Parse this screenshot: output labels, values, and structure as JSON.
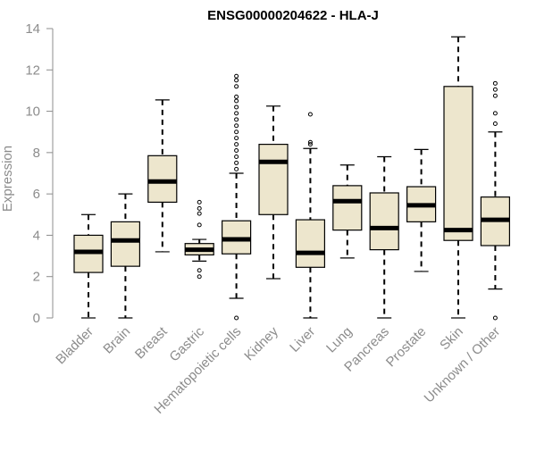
{
  "chart_data": {
    "type": "boxplot",
    "title": "ENSG00000204622 - HLA-J",
    "xlabel": "",
    "ylabel": "Expression",
    "ylim": [
      0,
      14
    ],
    "yticks": [
      0,
      2,
      4,
      6,
      8,
      10,
      12,
      14
    ],
    "grid": false,
    "box_fill": "#ede6cd",
    "series": [
      {
        "name": "Bladder",
        "lower_whisker": 0.0,
        "q1": 2.2,
        "median": 3.2,
        "q3": 4.0,
        "upper_whisker": 5.0,
        "outliers": []
      },
      {
        "name": "Brain",
        "lower_whisker": 0.0,
        "q1": 2.5,
        "median": 3.75,
        "q3": 4.65,
        "upper_whisker": 6.0,
        "outliers": []
      },
      {
        "name": "Breast",
        "lower_whisker": 3.2,
        "q1": 5.6,
        "median": 6.6,
        "q3": 7.85,
        "upper_whisker": 10.55,
        "outliers": []
      },
      {
        "name": "Gastric",
        "lower_whisker": 2.75,
        "q1": 3.05,
        "median": 3.3,
        "q3": 3.6,
        "upper_whisker": 3.8,
        "outliers": [
          5.6,
          5.3,
          5.05,
          4.5,
          2.3,
          2.0
        ]
      },
      {
        "name": "Hematopoietic cells",
        "lower_whisker": 0.95,
        "q1": 3.1,
        "median": 3.8,
        "q3": 4.7,
        "upper_whisker": 7.0,
        "outliers": [
          0.0,
          7.2,
          7.5,
          7.8,
          8.1,
          8.4,
          8.7,
          9.0,
          9.3,
          9.6,
          9.9,
          10.2,
          10.5,
          10.7,
          11.2,
          11.5,
          11.7
        ]
      },
      {
        "name": "Kidney",
        "lower_whisker": 1.9,
        "q1": 5.0,
        "median": 7.55,
        "q3": 8.4,
        "upper_whisker": 10.25,
        "outliers": []
      },
      {
        "name": "Liver",
        "lower_whisker": 0.0,
        "q1": 2.45,
        "median": 3.15,
        "q3": 4.75,
        "upper_whisker": 8.2,
        "outliers": [
          8.4,
          8.5,
          9.85
        ]
      },
      {
        "name": "Lung",
        "lower_whisker": 2.9,
        "q1": 4.25,
        "median": 5.65,
        "q3": 6.4,
        "upper_whisker": 7.4,
        "outliers": []
      },
      {
        "name": "Pancreas",
        "lower_whisker": 0.0,
        "q1": 3.3,
        "median": 4.35,
        "q3": 6.05,
        "upper_whisker": 7.8,
        "outliers": []
      },
      {
        "name": "Prostate",
        "lower_whisker": 2.25,
        "q1": 4.65,
        "median": 5.45,
        "q3": 6.35,
        "upper_whisker": 8.15,
        "outliers": []
      },
      {
        "name": "Skin",
        "lower_whisker": 0.0,
        "q1": 3.75,
        "median": 4.25,
        "q3": 11.2,
        "upper_whisker": 13.6,
        "outliers": []
      },
      {
        "name": "Unknown / Other",
        "lower_whisker": 1.4,
        "q1": 3.5,
        "median": 4.75,
        "q3": 5.85,
        "upper_whisker": 9.0,
        "outliers": [
          0.0,
          9.4,
          9.9,
          10.75,
          11.05,
          11.35
        ]
      }
    ]
  }
}
